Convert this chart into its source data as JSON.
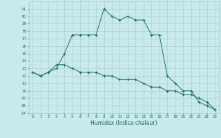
{
  "title": "",
  "xlabel": "Humidex (Indice chaleur)",
  "ylabel": "",
  "bg_color": "#c8eaea",
  "grid_color": "#a0cccc",
  "line_color": "#1a6e6a",
  "marker": "+",
  "xlim": [
    -0.5,
    23.5
  ],
  "ylim": [
    27,
    42
  ],
  "yticks": [
    27,
    28,
    29,
    30,
    31,
    32,
    33,
    34,
    35,
    36,
    37,
    38,
    39,
    40,
    41
  ],
  "xticks": [
    0,
    1,
    2,
    3,
    4,
    5,
    6,
    7,
    8,
    9,
    10,
    11,
    12,
    13,
    14,
    15,
    16,
    17,
    18,
    19,
    20,
    21,
    22,
    23
  ],
  "line1_x": [
    0,
    1,
    2,
    3,
    4,
    5,
    6,
    7,
    8,
    9,
    10,
    11,
    12,
    13,
    14,
    15,
    16,
    17,
    18,
    19,
    20,
    21,
    22,
    23
  ],
  "line1_y": [
    32.5,
    32.0,
    32.5,
    33.0,
    35.0,
    37.5,
    37.5,
    37.5,
    37.5,
    41.0,
    40.0,
    39.5,
    40.0,
    39.5,
    39.5,
    37.5,
    37.5,
    32.0,
    31.0,
    30.0,
    30.0,
    28.5,
    28.0,
    27.5
  ],
  "line2_x": [
    0,
    1,
    2,
    3,
    4,
    5,
    6,
    7,
    8,
    9,
    10,
    11,
    12,
    13,
    14,
    15,
    16,
    17,
    18,
    19,
    20,
    21,
    22,
    23
  ],
  "line2_y": [
    32.5,
    32.0,
    32.5,
    33.5,
    33.5,
    33.0,
    32.5,
    32.5,
    32.5,
    32.0,
    32.0,
    31.5,
    31.5,
    31.5,
    31.0,
    30.5,
    30.5,
    30.0,
    30.0,
    29.5,
    29.5,
    29.0,
    28.5,
    27.5
  ]
}
